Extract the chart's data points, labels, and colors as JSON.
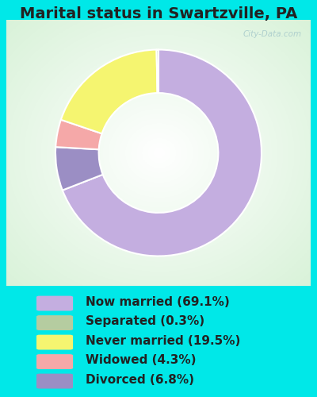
{
  "title": "Marital status in Swartzville, PA",
  "slices": [
    69.1,
    6.8,
    4.3,
    19.5,
    0.3
  ],
  "colors": [
    "#c4aee0",
    "#9b8ec4",
    "#f5a8a8",
    "#f5f570",
    "#b5cca0"
  ],
  "labels": [
    "Now married (69.1%)",
    "Separated (0.3%)",
    "Never married (19.5%)",
    "Widowed (4.3%)",
    "Divorced (6.8%)"
  ],
  "legend_colors": [
    "#c4aee0",
    "#b5cca0",
    "#f5f570",
    "#f5a8a8",
    "#9b8ec4"
  ],
  "bg_cyan": "#00e8e8",
  "chart_bg": "#ffffff",
  "watermark": "City-Data.com",
  "title_fontsize": 14,
  "legend_fontsize": 11,
  "donut_width": 0.42,
  "start_angle": 90
}
